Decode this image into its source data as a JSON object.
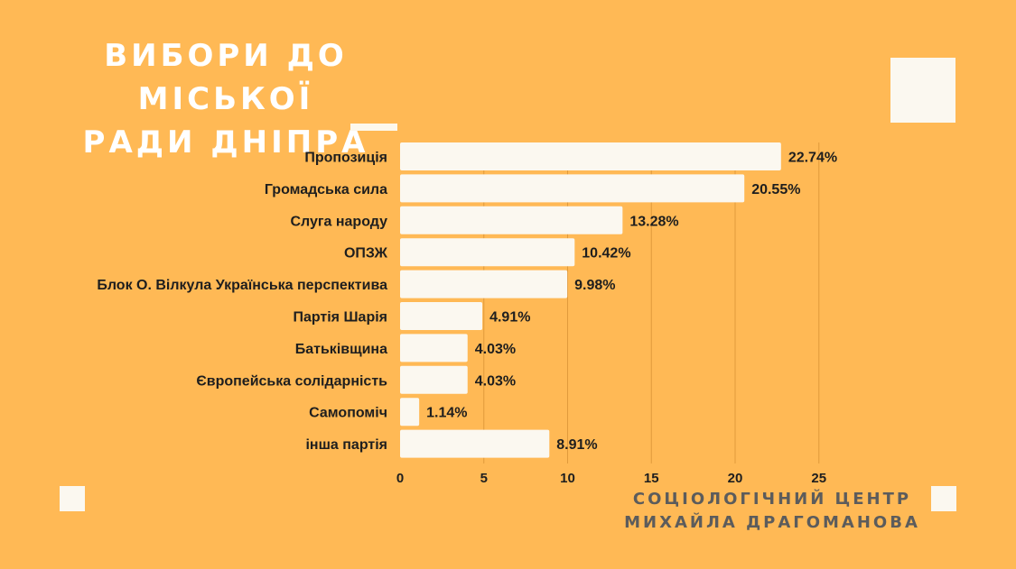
{
  "title_lines": [
    "ВИБОРИ ДО МІСЬКОЇ",
    "РАДИ ДНІПРА"
  ],
  "source_lines": [
    "СОЦІОЛОГІЧНИЙ ЦЕНТР",
    "МИХАЙЛА ДРАГОМАНОВА"
  ],
  "colors": {
    "background": "#FFB955",
    "bar": "#FBF8F0",
    "grid": "#E09A3C",
    "text": "#1E1E1E"
  },
  "chart_data": {
    "type": "bar",
    "orientation": "horizontal",
    "categories": [
      "Пропозиція",
      "Громадська сила",
      "Слуга народу",
      "ОПЗЖ",
      "Блок О. Вілкула Українська перспектива",
      "Партія Шарія",
      "Батьківщина",
      "Європейська солідарність",
      "Самопоміч",
      "інша партія"
    ],
    "values": [
      22.74,
      20.55,
      13.28,
      10.42,
      9.98,
      4.91,
      4.03,
      4.03,
      1.14,
      8.91
    ],
    "value_labels": [
      "22.74%",
      "20.55%",
      "13.28%",
      "10.42%",
      "9.98%",
      "4.91%",
      "4.03%",
      "4.03%",
      "1.14%",
      "8.91%"
    ],
    "x_ticks": [
      0,
      5,
      10,
      15,
      20,
      25
    ],
    "xlim": [
      0,
      25
    ],
    "grid": true,
    "legend": "none"
  }
}
